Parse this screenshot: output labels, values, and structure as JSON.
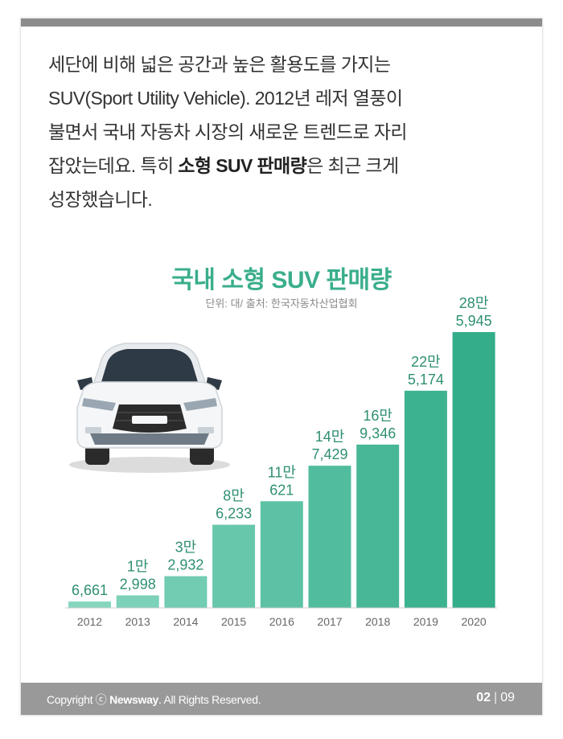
{
  "intro": {
    "line1": "세단에 비해 넓은 공간과 높은 활용도를 가지는",
    "line2": "SUV(Sport Utility Vehicle). 2012년 레저 열풍이",
    "line3": "불면서 국내 자동차 시장의 새로운 트렌드로 자리",
    "line4_pre": "잡았는데요. 특히 ",
    "line4_bold": "소형 SUV 판매량",
    "line4_post": "은 최근 크게",
    "line5": "성장했습니다."
  },
  "colors": {
    "title": "#3aae8c",
    "bar_light": "#86d6bf",
    "bar_dark": "#33ad8a",
    "label": "#2f8f73"
  },
  "chart_data": {
    "type": "bar",
    "title": "국내 소형 SUV 판매량",
    "subtitle": "단위: 대/ 출처: 한국자동차산업협회",
    "categories": [
      "2012",
      "2013",
      "2014",
      "2015",
      "2016",
      "2017",
      "2018",
      "2019",
      "2020"
    ],
    "values": [
      6661,
      12998,
      32932,
      86233,
      110621,
      147429,
      169346,
      225174,
      285945
    ],
    "labels": [
      [
        "6,661"
      ],
      [
        "1만",
        "2,998"
      ],
      [
        "3만",
        "2,932"
      ],
      [
        "8만",
        "6,233"
      ],
      [
        "11만",
        "621"
      ],
      [
        "14만",
        "7,429"
      ],
      [
        "16만",
        "9,346"
      ],
      [
        "22만",
        "5,174"
      ],
      [
        "28만",
        "5,945"
      ]
    ],
    "ylim": [
      0,
      285945
    ],
    "grid": false,
    "legend": "none"
  },
  "footer": {
    "copyright_pre": "Copyright ⓒ ",
    "brand": "Newsway",
    "copyright_post": ". All Rights Reserved.",
    "page_current": "02",
    "page_sep": "|",
    "page_total": "09"
  },
  "icons": {
    "car": "suv-car-front-icon"
  }
}
